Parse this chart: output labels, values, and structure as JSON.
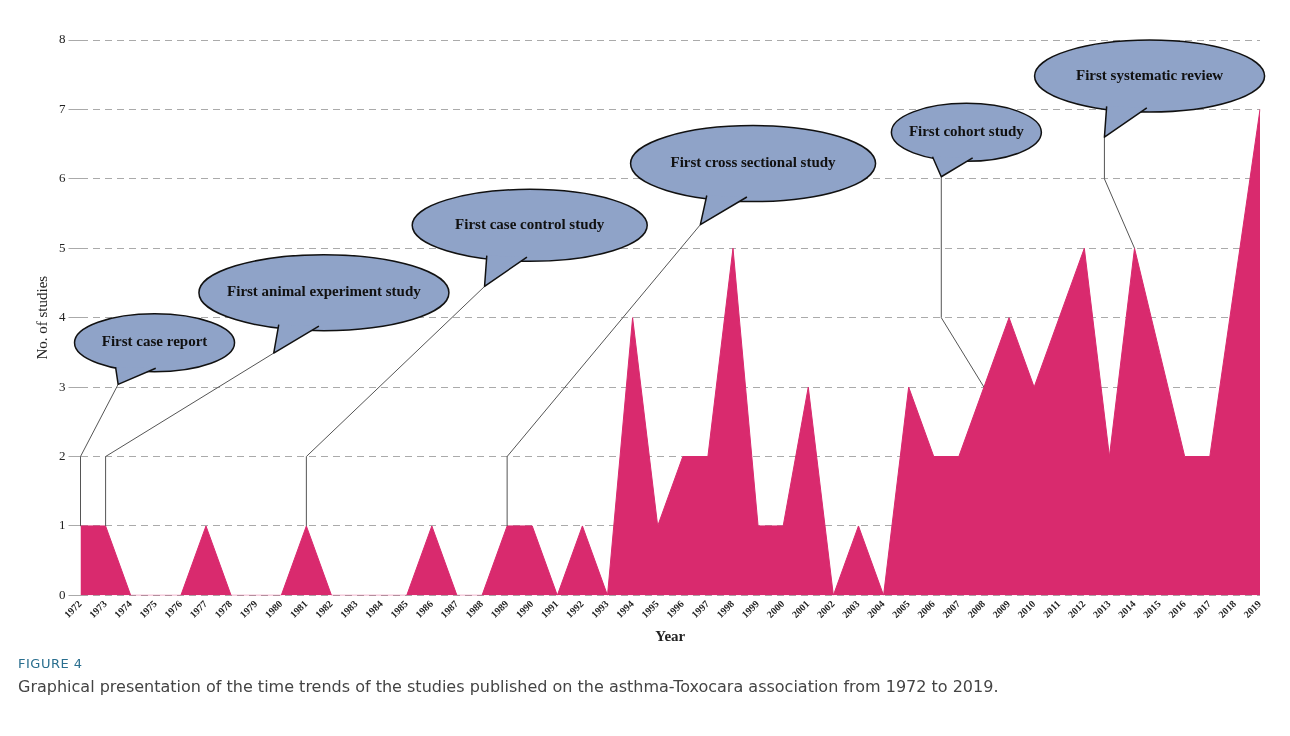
{
  "chart_data": {
    "type": "area",
    "xlabel": "Year",
    "ylabel": "No. of studies",
    "categories": [
      "1972",
      "1973",
      "1974",
      "1975",
      "1976",
      "1977",
      "1978",
      "1979",
      "1980",
      "1981",
      "1982",
      "1983",
      "1984",
      "1985",
      "1986",
      "1987",
      "1988",
      "1989",
      "1990",
      "1991",
      "1992",
      "1993",
      "1994",
      "1995",
      "1996",
      "1997",
      "1998",
      "1999",
      "2000",
      "2001",
      "2002",
      "2003",
      "2004",
      "2005",
      "2006",
      "2007",
      "2008",
      "2009",
      "2010",
      "2011",
      "2012",
      "2013",
      "2014",
      "2015",
      "2016",
      "2017",
      "2018",
      "2019"
    ],
    "series": [
      {
        "color": "#d92a6e",
        "values": [
          1,
          1,
          0,
          0,
          0,
          1,
          0,
          0,
          0,
          1,
          0,
          0,
          0,
          0,
          1,
          0,
          0,
          1,
          1,
          0,
          1,
          0,
          4,
          1,
          2,
          2,
          5,
          1,
          1,
          3,
          0,
          1,
          0,
          3,
          2,
          2,
          3,
          4,
          3,
          4,
          5,
          2,
          5,
          3.5,
          2,
          2,
          4.5,
          7
        ]
      }
    ],
    "ylim": [
      0,
      8
    ],
    "yticks": [
      0,
      1,
      2,
      3,
      4,
      5,
      6,
      7,
      8
    ],
    "grid": "y",
    "legend": false,
    "marker": "none",
    "annotations": [
      "First case report",
      "First animal experiment study",
      "First case control study",
      "First cross sectional study",
      "First cohort study",
      "First systematic review",
      "FIGURE 4",
      "Graphical presentation of the time trends of the studies published on the asthma-Toxocara association from 1972 to 2019."
    ]
  }
}
